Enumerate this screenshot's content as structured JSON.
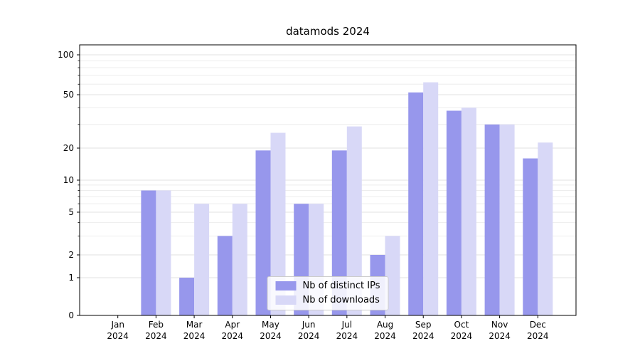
{
  "chart_data": {
    "type": "bar",
    "title": "datamods 2024",
    "categories": [
      "Jan 2024",
      "Feb 2024",
      "Mar 2024",
      "Apr 2024",
      "May 2024",
      "Jun 2024",
      "Jul 2024",
      "Aug 2024",
      "Sep 2024",
      "Oct 2024",
      "Nov 2024",
      "Dec 2024"
    ],
    "series": [
      {
        "name": "Nb of distinct IPs",
        "color": "#9797ec",
        "values": [
          0,
          8,
          1,
          3,
          19,
          6,
          19,
          2,
          52,
          38,
          30,
          16
        ]
      },
      {
        "name": "Nb of downloads",
        "color": "#d8d8f7",
        "values": [
          0,
          8,
          6,
          6,
          26,
          6,
          29,
          3,
          62,
          40,
          30,
          22
        ]
      }
    ],
    "xlabel": "",
    "ylabel": "",
    "yscale": "symlog",
    "yticks": [
      0,
      1,
      2,
      5,
      10,
      20,
      50,
      100
    ],
    "yminorticks": [
      3,
      4,
      6,
      7,
      8,
      9,
      30,
      40,
      60,
      70,
      80,
      90
    ],
    "ylim": [
      0,
      120
    ],
    "grid": true,
    "legend_position": "lower center",
    "colors": {
      "grid_major": "#e2e2e2",
      "grid_minor": "#ededed",
      "axis": "#000000",
      "text": "#000000"
    }
  }
}
